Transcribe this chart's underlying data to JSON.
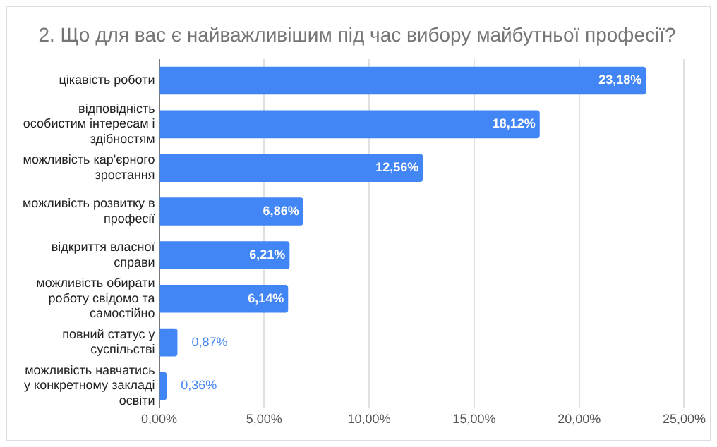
{
  "chart_data": {
    "type": "bar",
    "orientation": "horizontal",
    "title": "2. Що для вас є найважливішим під час вибору майбутньої професії?",
    "categories": [
      "цікавість роботи",
      "відповідність особистим інтересам і здібностям",
      "можливість кар'єрного зростання",
      "можливість розвитку в професії",
      "відкриття власної справи",
      "можливість обирати роботу свідомо та самостійно",
      "повний статус у суспільстві",
      "можливість навчатись у конкретному закладі освіти"
    ],
    "values": [
      23.18,
      18.12,
      12.56,
      6.86,
      6.21,
      6.14,
      0.87,
      0.36
    ],
    "value_labels": [
      "23,18%",
      "18,12%",
      "12,56%",
      "6,86%",
      "6,21%",
      "6,14%",
      "0,87%",
      "0,36%"
    ],
    "color": "#4285f4",
    "xlim": [
      0,
      25
    ],
    "xticks": [
      {
        "value": 0,
        "label": "0,00%"
      },
      {
        "value": 5,
        "label": "5,00%"
      },
      {
        "value": 10,
        "label": "10,00%"
      },
      {
        "value": 15,
        "label": "15,00%"
      },
      {
        "value": 20,
        "label": "20,00%"
      },
      {
        "value": 25,
        "label": "25,00%"
      }
    ],
    "grid": "x",
    "legend": false
  }
}
